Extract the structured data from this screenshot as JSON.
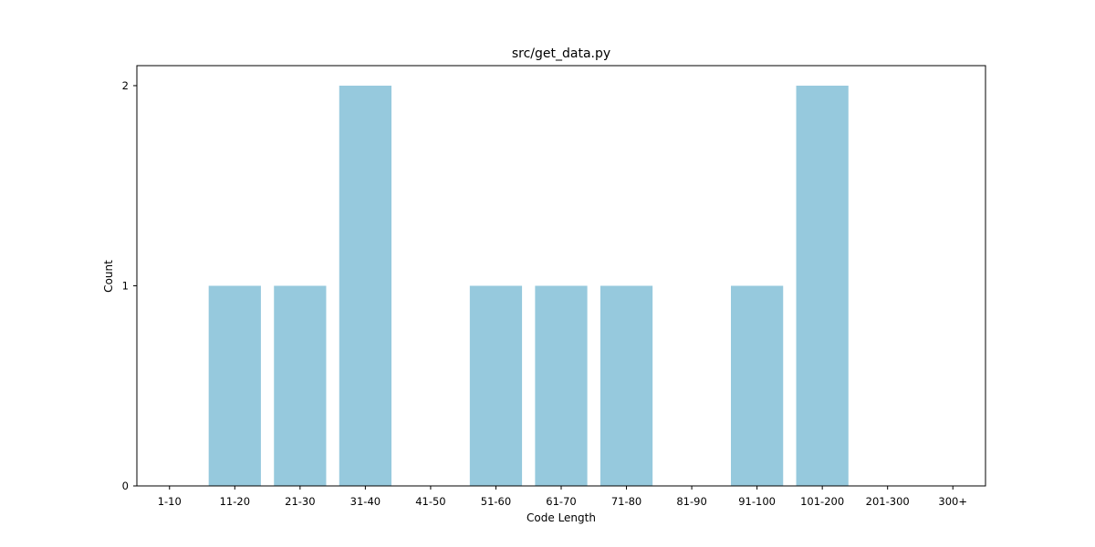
{
  "chart_data": {
    "type": "bar",
    "title": "src/get_data.py",
    "xlabel": "Code Length",
    "ylabel": "Count",
    "categories": [
      "1-10",
      "11-20",
      "21-30",
      "31-40",
      "41-50",
      "51-60",
      "61-70",
      "71-80",
      "81-90",
      "91-100",
      "101-200",
      "201-300",
      "300+"
    ],
    "values": [
      0,
      1,
      1,
      2,
      0,
      1,
      1,
      1,
      0,
      1,
      2,
      0,
      0
    ],
    "ylim": [
      0,
      2.1
    ],
    "yticks": [
      0,
      1,
      2
    ],
    "grid": false,
    "bar_color": "#96c9dd"
  }
}
